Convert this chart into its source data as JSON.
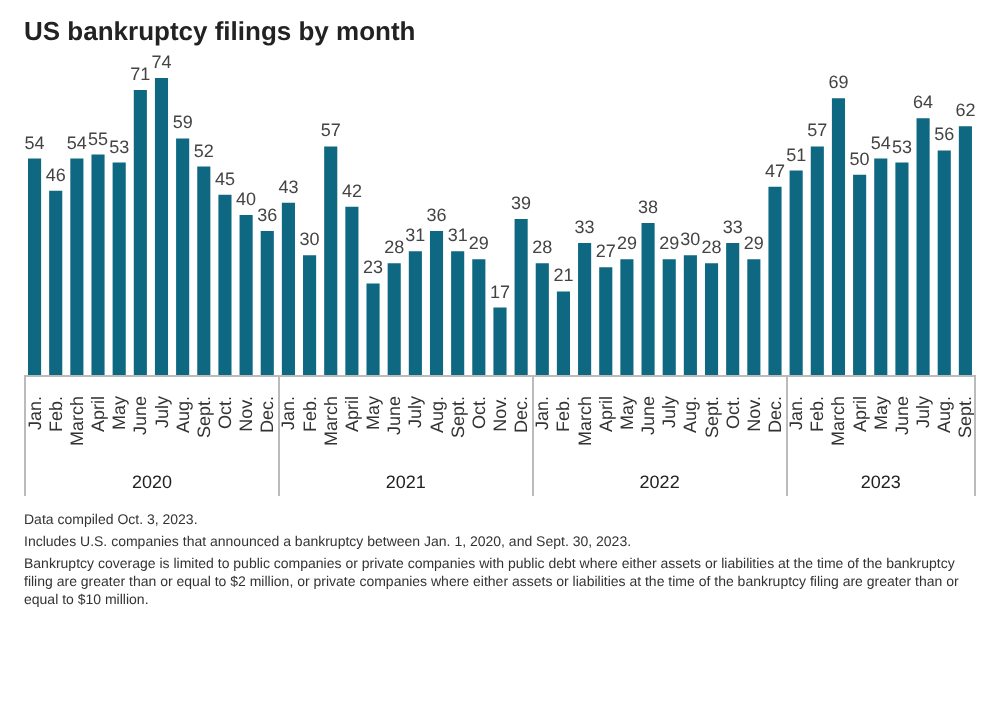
{
  "chart_data": {
    "type": "bar",
    "title": "US bankruptcy filings by month",
    "categories": [
      "Jan.",
      "Feb.",
      "March",
      "April",
      "May",
      "June",
      "July",
      "Aug.",
      "Sept.",
      "Oct.",
      "Nov.",
      "Dec.",
      "Jan.",
      "Feb.",
      "March",
      "April",
      "May",
      "June",
      "July",
      "Aug.",
      "Sept.",
      "Oct.",
      "Nov.",
      "Dec.",
      "Jan.",
      "Feb.",
      "March",
      "April",
      "May",
      "June",
      "July",
      "Aug.",
      "Sept.",
      "Oct.",
      "Nov.",
      "Dec.",
      "Jan.",
      "Feb.",
      "March",
      "April",
      "May",
      "June",
      "July",
      "Aug.",
      "Sept."
    ],
    "values": [
      54,
      46,
      54,
      55,
      53,
      71,
      74,
      59,
      52,
      45,
      40,
      36,
      43,
      30,
      57,
      42,
      23,
      28,
      31,
      36,
      31,
      29,
      17,
      39,
      28,
      21,
      33,
      27,
      29,
      38,
      29,
      30,
      28,
      33,
      29,
      47,
      51,
      57,
      69,
      50,
      54,
      53,
      64,
      56,
      62
    ],
    "color": "#0e6882",
    "data_labels": true,
    "grid": false,
    "legend": false,
    "annotations": [
      "2020",
      "2021",
      "2022",
      "2023",
      "Data compiled Oct. 3, 2023.",
      "Includes U.S. companies that announced a bankruptcy between Jan. 1, 2020, and Sept. 30, 2023.",
      "Bankruptcy coverage is limited to public companies or private companies with public debt where either assets or liabilities at the time of the bankruptcy filing are greater than or equal to $2 million, or private companies where either assets or liabilities at the time of the bankruptcy filing are greater than or equal to $10 million."
    ]
  }
}
